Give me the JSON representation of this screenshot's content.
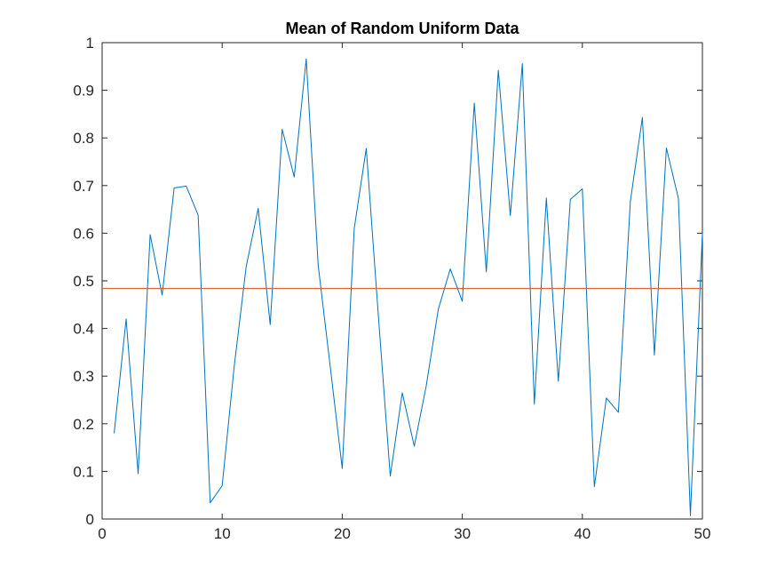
{
  "chart_data": {
    "type": "line",
    "title": "Mean of Random Uniform Data",
    "xlabel": "",
    "ylabel": "",
    "xlim": [
      0,
      50
    ],
    "ylim": [
      0,
      1
    ],
    "x_ticks": [
      0,
      10,
      20,
      30,
      40,
      50
    ],
    "y_ticks": [
      0,
      0.1,
      0.2,
      0.3,
      0.4,
      0.5,
      0.6,
      0.7,
      0.8,
      0.9,
      1
    ],
    "x_tick_labels": [
      "0",
      "10",
      "20",
      "30",
      "40",
      "50"
    ],
    "y_tick_labels": [
      "0",
      "0.1",
      "0.2",
      "0.3",
      "0.4",
      "0.5",
      "0.6",
      "0.7",
      "0.8",
      "0.9",
      "1"
    ],
    "grid": false,
    "series": [
      {
        "color": "#0072bd",
        "x": [
          1,
          2,
          3,
          4,
          5,
          6,
          7,
          8,
          9,
          10,
          11,
          12,
          13,
          14,
          15,
          16,
          17,
          18,
          19,
          20,
          21,
          22,
          23,
          24,
          25,
          26,
          27,
          28,
          29,
          30,
          31,
          32,
          33,
          34,
          35,
          36,
          37,
          38,
          39,
          40,
          41,
          42,
          43,
          44,
          45,
          46,
          47,
          48,
          49,
          50
        ],
        "y": [
          0.18,
          0.42,
          0.095,
          0.597,
          0.47,
          0.695,
          0.699,
          0.638,
          0.034,
          0.07,
          0.32,
          0.53,
          0.652,
          0.408,
          0.818,
          0.718,
          0.966,
          0.532,
          0.32,
          0.106,
          0.61,
          0.778,
          0.43,
          0.09,
          0.265,
          0.153,
          0.28,
          0.44,
          0.525,
          0.457,
          0.873,
          0.519,
          0.942,
          0.637,
          0.956,
          0.241,
          0.674,
          0.289,
          0.671,
          0.693,
          0.068,
          0.254,
          0.224,
          0.667,
          0.843,
          0.344,
          0.779,
          0.673,
          0.007,
          0.6
        ]
      },
      {
        "color": "#d95319",
        "x": [
          0,
          50
        ],
        "y": [
          0.484,
          0.484
        ]
      }
    ]
  }
}
